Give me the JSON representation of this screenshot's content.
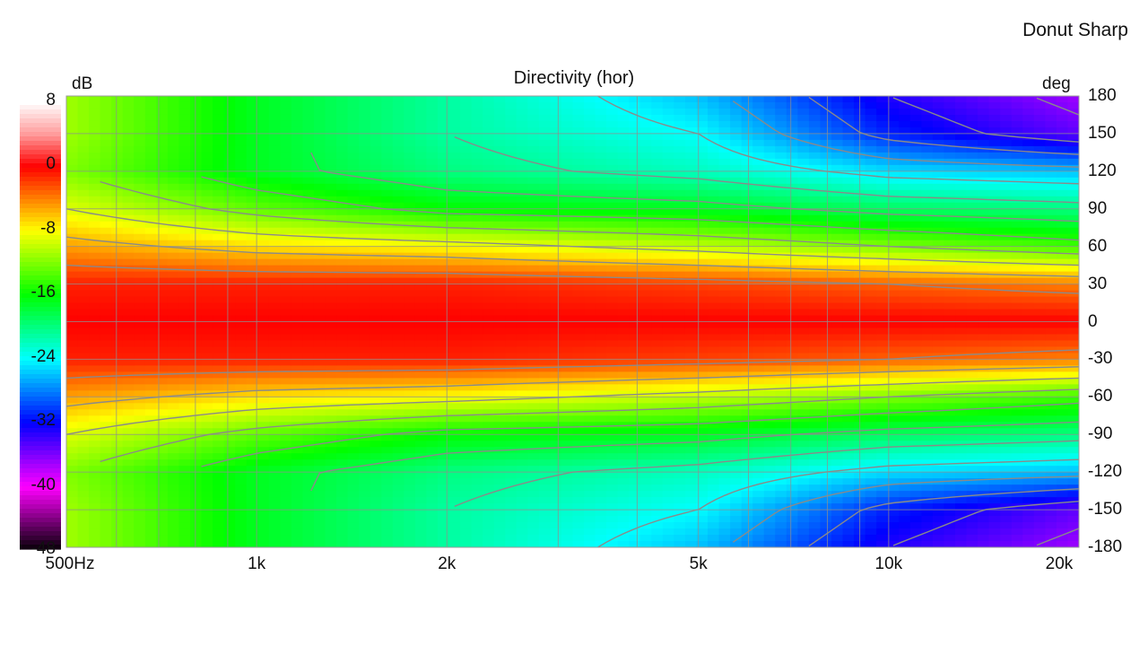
{
  "page": {
    "corner_title": "Donut Sharp"
  },
  "chart_data": {
    "type": "heatmap",
    "title": "Directivity (hor)",
    "xlabel": "",
    "ylabel": "deg",
    "colorbar_label": "dB",
    "x_scale": "log",
    "x_range_hz": [
      500,
      20000
    ],
    "y_range_deg": [
      -180,
      180
    ],
    "z_range_db": [
      -48,
      8
    ],
    "x_ticks": [
      {
        "value": 500,
        "label": "500Hz"
      },
      {
        "value": 1000,
        "label": "1k"
      },
      {
        "value": 2000,
        "label": "2k"
      },
      {
        "value": 5000,
        "label": "5k"
      },
      {
        "value": 10000,
        "label": "10k"
      },
      {
        "value": 20000,
        "label": "20k"
      }
    ],
    "y_ticks": [
      180,
      150,
      120,
      90,
      60,
      30,
      0,
      -30,
      -60,
      -90,
      -120,
      -150,
      -180
    ],
    "colorbar_ticks": [
      8,
      0,
      -8,
      -16,
      -24,
      -32,
      -40,
      -48
    ],
    "colormap": [
      {
        "db": 8,
        "color": "#ffffff"
      },
      {
        "db": 4,
        "color": "#ff9a9a"
      },
      {
        "db": 0,
        "color": "#ff0000"
      },
      {
        "db": -4,
        "color": "#ff8000"
      },
      {
        "db": -8,
        "color": "#ffff00"
      },
      {
        "db": -16,
        "color": "#00ff00"
      },
      {
        "db": -24,
        "color": "#00ffff"
      },
      {
        "db": -32,
        "color": "#0000ff"
      },
      {
        "db": -40,
        "color": "#ff00ff"
      },
      {
        "db": -48,
        "color": "#000000"
      }
    ],
    "grid": true,
    "contours": true,
    "frequencies_hz": [
      500,
      1000,
      2000,
      5000,
      10000,
      20000
    ],
    "angles_deg": [
      0,
      30,
      60,
      90,
      120,
      150,
      180
    ],
    "levels_db": [
      [
        0,
        -1,
        -5,
        -9,
        -12,
        -11,
        -11
      ],
      [
        0,
        -1,
        -7,
        -13,
        -17,
        -17,
        -17
      ],
      [
        0,
        -1,
        -8,
        -16,
        -20,
        -21,
        -21
      ],
      [
        0,
        -2,
        -10,
        -17,
        -22,
        -24,
        -26
      ],
      [
        0,
        -3,
        -12,
        -19,
        -25,
        -31,
        -33
      ],
      [
        0,
        -4,
        -14,
        -20,
        -26,
        -35,
        -37
      ]
    ]
  }
}
